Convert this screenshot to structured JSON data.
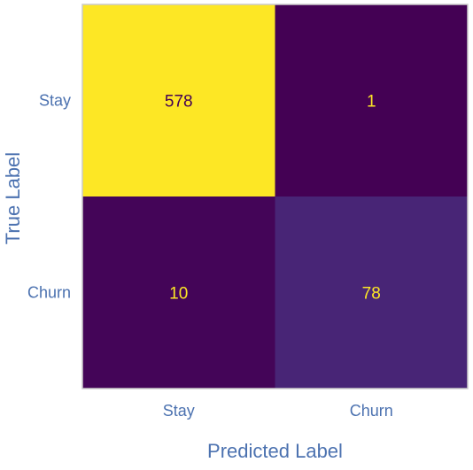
{
  "chart_data": {
    "type": "heatmap",
    "title": "",
    "xlabel": "Predicted Label",
    "ylabel": "True Label",
    "x_categories": [
      "Stay",
      "Churn"
    ],
    "y_categories": [
      "Stay",
      "Churn"
    ],
    "values": [
      [
        578,
        1
      ],
      [
        10,
        78
      ]
    ],
    "value_range": [
      1,
      578
    ],
    "colormap": "viridis",
    "colorbar": false,
    "grid": false,
    "colors": {
      "label_text": "#4c72b0",
      "axis_frame": "#cccccc",
      "cell_text_on_light": "#440154",
      "cell_text_on_dark": "#fde725"
    }
  }
}
